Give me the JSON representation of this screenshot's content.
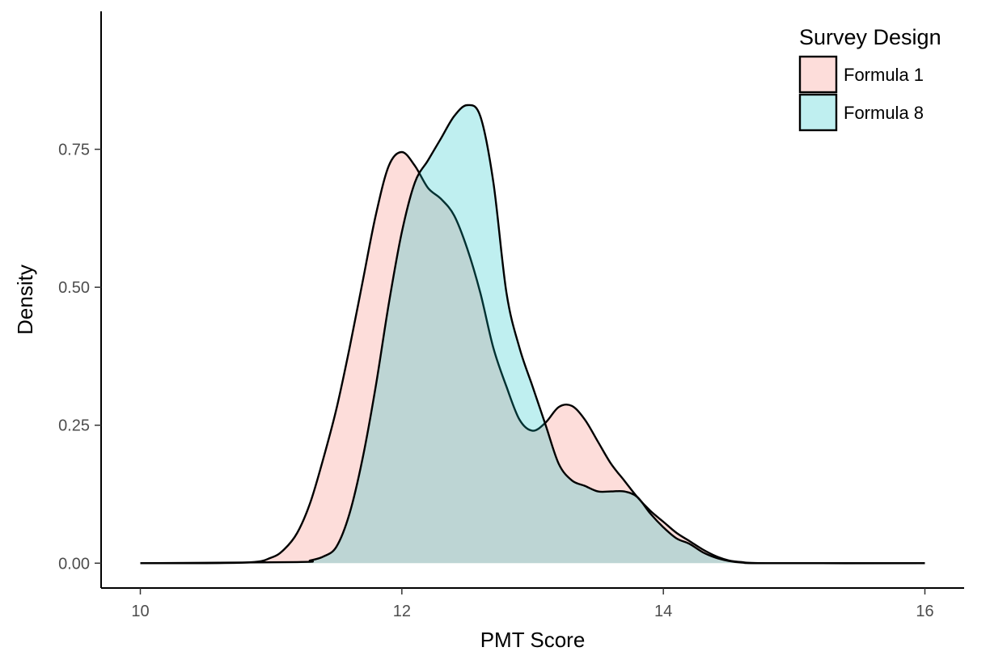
{
  "chart_data": {
    "type": "area",
    "title": "",
    "xlabel": "PMT Score",
    "ylabel": "Density",
    "xlim": [
      9.7,
      16.3
    ],
    "ylim": [
      -0.045,
      1.0
    ],
    "x_ticks": [
      10,
      12,
      14,
      16
    ],
    "x_tick_labels": [
      "10",
      "12",
      "14",
      "16"
    ],
    "y_ticks": [
      0.0,
      0.25,
      0.5,
      0.75
    ],
    "y_tick_labels": [
      "0.00",
      "0.25",
      "0.50",
      "0.75"
    ],
    "grid": false,
    "legend": {
      "title": "Survey Design",
      "position": "top-right"
    },
    "series": [
      {
        "name": "Formula 1",
        "fill": "#F8766D",
        "points": [
          [
            10.0,
            0.0
          ],
          [
            10.8,
            0.001
          ],
          [
            11.0,
            0.01
          ],
          [
            11.1,
            0.025
          ],
          [
            11.2,
            0.055
          ],
          [
            11.3,
            0.11
          ],
          [
            11.4,
            0.19
          ],
          [
            11.5,
            0.28
          ],
          [
            11.6,
            0.39
          ],
          [
            11.7,
            0.51
          ],
          [
            11.8,
            0.63
          ],
          [
            11.9,
            0.72
          ],
          [
            12.0,
            0.745
          ],
          [
            12.1,
            0.72
          ],
          [
            12.2,
            0.68
          ],
          [
            12.3,
            0.66
          ],
          [
            12.4,
            0.63
          ],
          [
            12.5,
            0.57
          ],
          [
            12.6,
            0.49
          ],
          [
            12.7,
            0.39
          ],
          [
            12.8,
            0.32
          ],
          [
            12.9,
            0.26
          ],
          [
            13.0,
            0.24
          ],
          [
            13.1,
            0.255
          ],
          [
            13.2,
            0.283
          ],
          [
            13.3,
            0.285
          ],
          [
            13.4,
            0.26
          ],
          [
            13.5,
            0.22
          ],
          [
            13.6,
            0.18
          ],
          [
            13.7,
            0.15
          ],
          [
            13.8,
            0.12
          ],
          [
            13.9,
            0.095
          ],
          [
            14.0,
            0.075
          ],
          [
            14.1,
            0.055
          ],
          [
            14.2,
            0.04
          ],
          [
            14.3,
            0.025
          ],
          [
            14.4,
            0.013
          ],
          [
            14.5,
            0.005
          ],
          [
            14.6,
            0.002
          ],
          [
            14.8,
            0.0
          ],
          [
            16.0,
            0.0
          ]
        ]
      },
      {
        "name": "Formula 8",
        "fill": "#00BFC4",
        "points": [
          [
            10.0,
            0.0
          ],
          [
            11.2,
            0.002
          ],
          [
            11.3,
            0.005
          ],
          [
            11.4,
            0.012
          ],
          [
            11.5,
            0.03
          ],
          [
            11.6,
            0.09
          ],
          [
            11.7,
            0.19
          ],
          [
            11.8,
            0.32
          ],
          [
            11.9,
            0.47
          ],
          [
            12.0,
            0.6
          ],
          [
            12.1,
            0.69
          ],
          [
            12.2,
            0.73
          ],
          [
            12.3,
            0.77
          ],
          [
            12.4,
            0.81
          ],
          [
            12.5,
            0.83
          ],
          [
            12.6,
            0.81
          ],
          [
            12.7,
            0.69
          ],
          [
            12.8,
            0.49
          ],
          [
            12.9,
            0.39
          ],
          [
            13.0,
            0.32
          ],
          [
            13.1,
            0.25
          ],
          [
            13.2,
            0.18
          ],
          [
            13.3,
            0.15
          ],
          [
            13.4,
            0.14
          ],
          [
            13.5,
            0.13
          ],
          [
            13.6,
            0.13
          ],
          [
            13.7,
            0.13
          ],
          [
            13.8,
            0.12
          ],
          [
            13.9,
            0.09
          ],
          [
            14.0,
            0.065
          ],
          [
            14.1,
            0.045
          ],
          [
            14.2,
            0.035
          ],
          [
            14.3,
            0.02
          ],
          [
            14.4,
            0.01
          ],
          [
            14.5,
            0.004
          ],
          [
            14.6,
            0.001
          ],
          [
            14.8,
            0.0
          ],
          [
            16.0,
            0.0
          ]
        ]
      }
    ]
  }
}
